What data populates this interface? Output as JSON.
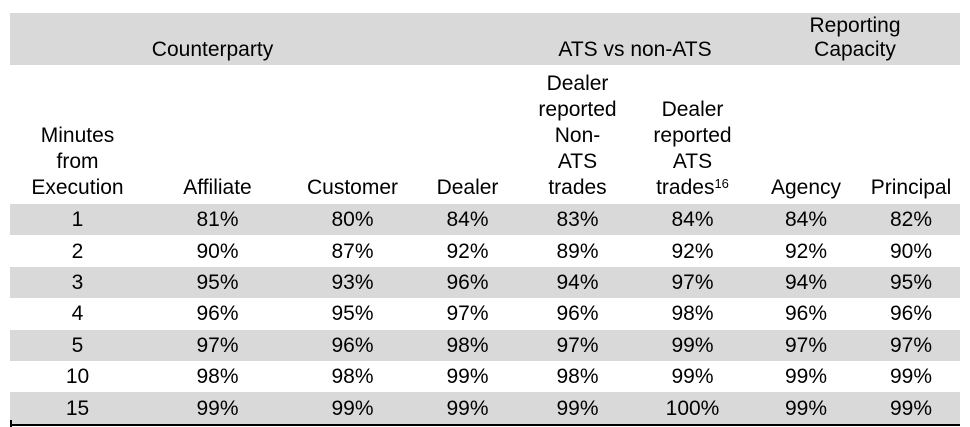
{
  "table": {
    "groups": [
      {
        "label": "Counterparty",
        "colspan": 3
      },
      {
        "label": "",
        "colspan": 1
      },
      {
        "label": "ATS vs non-ATS",
        "colspan": 2
      },
      {
        "label": "Reporting\nCapacity",
        "colspan": 2
      }
    ],
    "columns": [
      {
        "label": "Minutes\nfrom\nExecution"
      },
      {
        "label": "Affiliate"
      },
      {
        "label": "Customer"
      },
      {
        "label": "Dealer"
      },
      {
        "label": "Dealer\nreported\nNon-\nATS\ntrades"
      },
      {
        "label": "Dealer\nreported\nATS\ntrades",
        "superscript": "16"
      },
      {
        "label": "Agency"
      },
      {
        "label": "Principal"
      }
    ],
    "rows": [
      {
        "minutes": "1",
        "values": [
          "81%",
          "80%",
          "84%",
          "83%",
          "84%",
          "84%",
          "82%"
        ]
      },
      {
        "minutes": "2",
        "values": [
          "90%",
          "87%",
          "92%",
          "89%",
          "92%",
          "92%",
          "90%"
        ]
      },
      {
        "minutes": "3",
        "values": [
          "95%",
          "93%",
          "96%",
          "94%",
          "97%",
          "94%",
          "95%"
        ]
      },
      {
        "minutes": "4",
        "values": [
          "96%",
          "95%",
          "97%",
          "96%",
          "98%",
          "96%",
          "96%"
        ]
      },
      {
        "minutes": "5",
        "values": [
          "97%",
          "96%",
          "98%",
          "97%",
          "99%",
          "97%",
          "97%"
        ]
      },
      {
        "minutes": "10",
        "values": [
          "98%",
          "98%",
          "99%",
          "98%",
          "99%",
          "99%",
          "99%"
        ]
      },
      {
        "minutes": "15",
        "values": [
          "99%",
          "99%",
          "99%",
          "99%",
          "100%",
          "99%",
          "99%"
        ]
      }
    ],
    "colors": {
      "band": "#d9d9d9",
      "stripe": "#d9d9d9",
      "text": "#000000",
      "border": "#000000"
    }
  },
  "chart_data": {
    "type": "table",
    "column_groups": [
      "Counterparty",
      "ATS vs non-ATS",
      "Reporting Capacity"
    ],
    "columns": [
      "Minutes from Execution",
      "Affiliate",
      "Customer",
      "Dealer",
      "Dealer reported Non-ATS trades",
      "Dealer reported ATS trades16",
      "Agency",
      "Principal"
    ],
    "x": [
      1,
      2,
      3,
      4,
      5,
      10,
      15
    ],
    "xlabel": "Minutes from Execution",
    "unit": "%",
    "series": [
      {
        "name": "Affiliate",
        "values": [
          81,
          90,
          95,
          96,
          97,
          98,
          99
        ]
      },
      {
        "name": "Customer",
        "values": [
          80,
          87,
          93,
          95,
          96,
          98,
          99
        ]
      },
      {
        "name": "Dealer",
        "values": [
          84,
          92,
          96,
          97,
          98,
          99,
          99
        ]
      },
      {
        "name": "Dealer reported Non-ATS trades",
        "values": [
          83,
          89,
          94,
          96,
          97,
          98,
          99
        ]
      },
      {
        "name": "Dealer reported ATS trades",
        "values": [
          84,
          92,
          97,
          98,
          99,
          99,
          100
        ]
      },
      {
        "name": "Agency",
        "values": [
          84,
          92,
          94,
          96,
          97,
          99,
          99
        ]
      },
      {
        "name": "Principal",
        "values": [
          82,
          90,
          95,
          96,
          97,
          99,
          99
        ]
      }
    ]
  }
}
